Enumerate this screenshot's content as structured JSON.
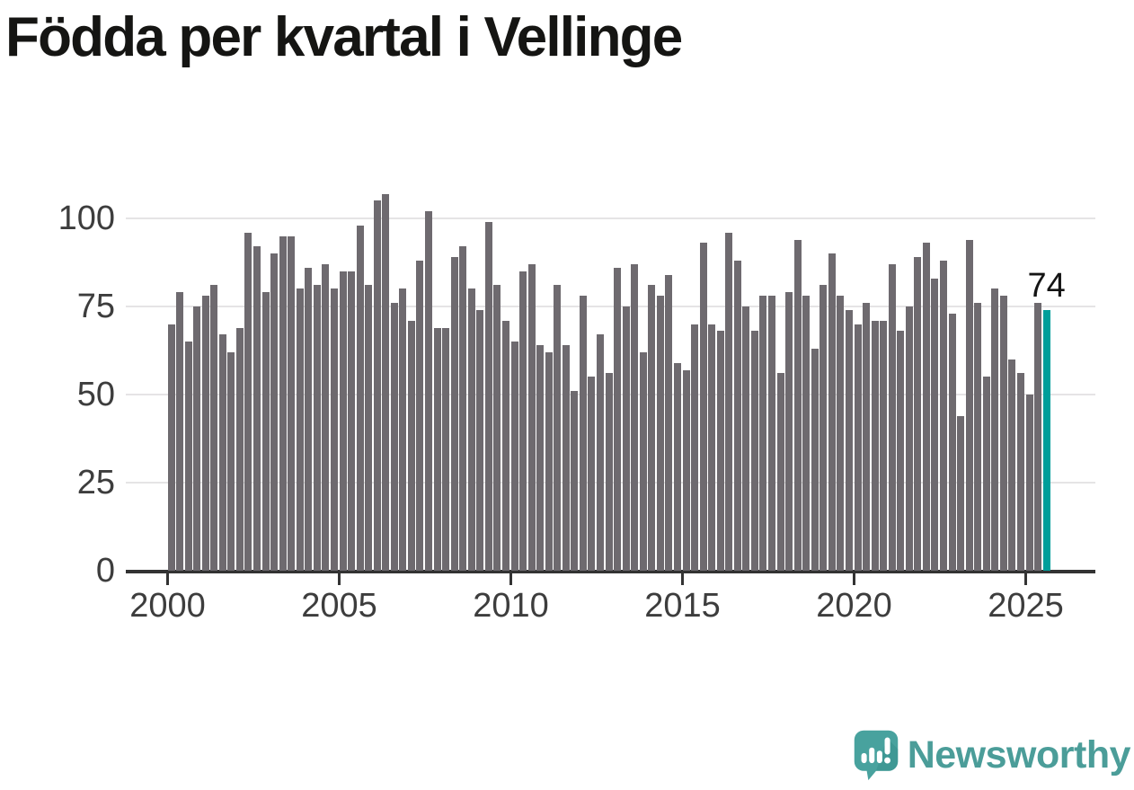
{
  "title": "Födda per kvartal i Vellinge",
  "annotation": {
    "last_value_label": "74"
  },
  "logo": {
    "text": "Newsworthy"
  },
  "colors": {
    "bar": "#6e6a6f",
    "highlight": "#009e9a",
    "grid": "#e5e4e5",
    "axis": "#333333",
    "tick_label": "#3d3d3d",
    "title": "#151513",
    "logo_text": "#4b9d99",
    "logo_icon": "#48a29e",
    "logo_icon_shade": "#37908c"
  },
  "chart_data": {
    "type": "bar",
    "title": "Födda per kvartal i Vellinge",
    "x_unit": "quarter",
    "x_start": "2000-Q1",
    "x_end": "2025-Q3",
    "x_tick_labels": [
      "2000",
      "2005",
      "2010",
      "2015",
      "2020",
      "2025"
    ],
    "y_ticks": [
      0,
      25,
      50,
      75,
      100
    ],
    "ylim": [
      0,
      110
    ],
    "grid": "horizontal",
    "legend": "none",
    "highlight_index": 102,
    "highlight_label": "74",
    "values": [
      70,
      79,
      65,
      75,
      78,
      81,
      67,
      62,
      69,
      96,
      92,
      79,
      90,
      95,
      95,
      80,
      86,
      81,
      87,
      80,
      85,
      85,
      98,
      81,
      105,
      107,
      76,
      80,
      71,
      88,
      102,
      69,
      69,
      89,
      92,
      80,
      74,
      99,
      81,
      71,
      65,
      85,
      87,
      64,
      62,
      81,
      64,
      51,
      78,
      55,
      67,
      56,
      86,
      75,
      87,
      62,
      81,
      78,
      84,
      59,
      57,
      70,
      93,
      70,
      68,
      96,
      88,
      75,
      68,
      78,
      78,
      56,
      79,
      94,
      78,
      63,
      81,
      90,
      78,
      74,
      70,
      76,
      71,
      71,
      87,
      68,
      75,
      89,
      93,
      83,
      88,
      73,
      44,
      94,
      76,
      55,
      80,
      78,
      60,
      56,
      50,
      76,
      74
    ]
  }
}
